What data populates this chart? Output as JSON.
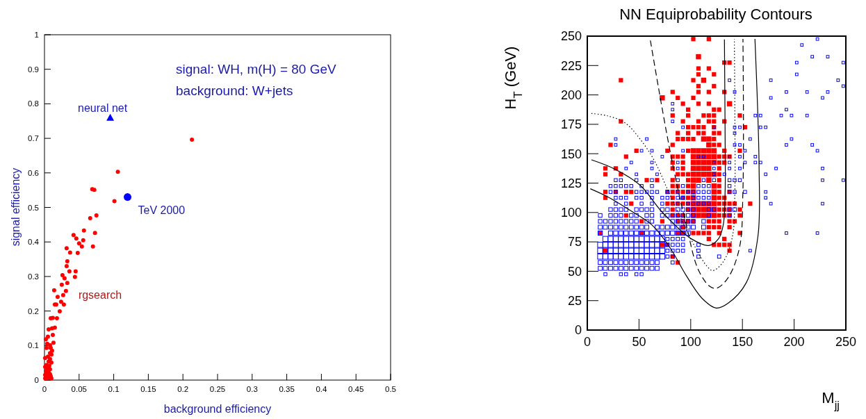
{
  "chart_data": [
    {
      "type": "scatter",
      "xlabel": "background efficiency",
      "ylabel": "signal efficiency",
      "xlim": [
        0,
        0.5
      ],
      "ylim": [
        0,
        1
      ],
      "xticks": [
        0,
        0.05,
        0.1,
        0.15,
        0.2,
        0.25,
        0.3,
        0.35,
        0.4,
        0.45,
        0.5
      ],
      "yticks": [
        0,
        0.1,
        0.2,
        0.3,
        0.4,
        0.5,
        0.6,
        0.7,
        0.8,
        0.9,
        1
      ],
      "annotations": [
        "signal: WH, m(H) = 80 GeV",
        "background: W+jets"
      ],
      "series": [
        {
          "name": "rgsearch",
          "color": "#ff0000",
          "marker": "circle",
          "x": [
            0.213,
            0.106,
            0.069,
            0.072,
            0.101,
            0.075,
            0.066,
            0.057,
            0.042,
            0.046,
            0.056,
            0.05,
            0.054,
            0.07,
            0.073,
            0.032,
            0.037,
            0.048,
            0.033,
            0.032,
            0.036,
            0.045,
            0.044,
            0.026,
            0.029,
            0.033,
            0.025,
            0.014,
            0.031,
            0.019,
            0.027,
            0.024,
            0.028,
            0.015,
            0.017,
            0.022,
            0.009,
            0.012,
            0.018,
            0.006,
            0.011,
            0.015,
            0.012,
            0.005,
            0.002,
            0.013,
            0.008,
            0.003,
            0.009,
            0.004,
            0.011,
            0.008,
            0.01,
            0.005,
            0.001,
            0.008,
            0.006,
            0.01,
            0.003,
            0.007,
            0.001,
            0.004,
            0.008,
            0.002,
            0.006,
            0.003,
            0.008,
            0.001,
            0.005,
            0.009,
            0.006,
            0.004,
            0.001,
            0.01
          ],
          "values": [
            0.696,
            0.603,
            0.553,
            0.551,
            0.518,
            0.477,
            0.469,
            0.433,
            0.42,
            0.41,
            0.405,
            0.396,
            0.387,
            0.387,
            0.426,
            0.382,
            0.369,
            0.368,
            0.344,
            0.33,
            0.315,
            0.315,
            0.299,
            0.304,
            0.295,
            0.281,
            0.276,
            0.26,
            0.258,
            0.241,
            0.246,
            0.227,
            0.219,
            0.219,
            0.219,
            0.199,
            0.179,
            0.18,
            0.179,
            0.147,
            0.15,
            0.152,
            0.131,
            0.126,
            0.118,
            0.108,
            0.101,
            0.093,
            0.093,
            0.105,
            0.085,
            0.078,
            0.074,
            0.068,
            0.064,
            0.061,
            0.054,
            0.051,
            0.044,
            0.041,
            0.038,
            0.033,
            0.031,
            0.026,
            0.022,
            0.018,
            0.017,
            0.015,
            0.013,
            0.011,
            0.008,
            0.006,
            0.005,
            0.005
          ]
        },
        {
          "name": "neural net",
          "color": "#0000ff",
          "marker": "triangle",
          "x": [
            0.095
          ],
          "values": [
            0.76
          ]
        },
        {
          "name": "TeV 2000",
          "color": "#0000ff",
          "marker": "circle",
          "x": [
            0.12
          ],
          "values": [
            0.53
          ]
        }
      ]
    },
    {
      "type": "bubble",
      "title": "NN Equiprobability Contours",
      "xlabel": "M$_{jj}$",
      "ylabel": "H$_{T}$ (GeV)",
      "xlim": [
        0,
        250
      ],
      "ylim": [
        0,
        250
      ],
      "xticks": [
        0,
        50,
        100,
        150,
        200,
        250
      ],
      "yticks": [
        0,
        25,
        50,
        75,
        100,
        125,
        150,
        175,
        200,
        225,
        250
      ],
      "series": [
        {
          "color": "#ff0000",
          "marker": "square",
          "x": [
            102.5,
            117.5,
            107.5,
            132.5,
            137.5,
            107.5,
            117.5,
            107.5,
            122.5,
            32.5,
            102.5,
            112.5,
            107.5,
            122.5,
            82.5,
            107.5,
            117.5,
            132.5,
            72.5,
            87.5,
            102.5,
            92.5,
            107.5,
            117.5,
            137.5,
            97.5,
            122.5,
            127.5,
            82.5,
            97.5,
            112.5,
            117.5,
            122.5,
            147.5,
            32.5,
            92.5,
            107.5,
            117.5,
            122.5,
            132.5,
            97.5,
            102.5,
            107.5,
            112.5,
            122.5,
            152.5,
            87.5,
            97.5,
            107.5,
            112.5,
            122.5,
            127.5,
            87.5,
            92.5,
            97.5,
            102.5,
            112.5,
            117.5,
            122.5,
            22.5,
            82.5,
            117.5,
            122.5,
            127.5,
            47.5,
            77.5,
            97.5,
            102.5,
            107.5,
            112.5,
            117.5,
            122.5,
            132.5,
            147.5,
            37.5,
            82.5,
            87.5,
            92.5,
            102.5,
            107.5,
            112.5,
            117.5,
            122.5,
            127.5,
            132.5,
            137.5,
            82.5,
            92.5,
            102.5,
            107.5,
            112.5,
            117.5,
            122.5,
            127.5,
            132.5,
            17.5,
            27.5,
            82.5,
            92.5,
            102.5,
            107.5,
            112.5,
            117.5,
            127.5,
            17.5,
            32.5,
            87.5,
            92.5,
            97.5,
            102.5,
            107.5,
            112.5,
            117.5,
            122.5,
            127.5,
            57.5,
            67.5,
            82.5,
            97.5,
            102.5,
            107.5,
            117.5,
            127.5,
            82.5,
            87.5,
            97.5,
            102.5,
            122.5,
            127.5,
            17.5,
            27.5,
            37.5,
            42.5,
            77.5,
            82.5,
            87.5,
            92.5,
            97.5,
            102.5,
            122.5,
            127.5,
            137.5,
            17.5,
            82.5,
            92.5,
            97.5,
            102.5,
            122.5,
            127.5,
            132.5,
            42.5,
            77.5,
            82.5,
            87.5,
            92.5,
            97.5,
            102.5,
            107.5,
            112.5,
            117.5,
            122.5,
            127.5,
            132.5,
            137.5,
            142.5,
            157.5,
            82.5,
            97.5,
            102.5,
            107.5,
            112.5,
            117.5,
            122.5,
            127.5,
            132.5,
            137.5,
            147.5,
            37.5,
            82.5,
            87.5,
            92.5,
            102.5,
            107.5,
            112.5,
            117.5,
            122.5,
            127.5,
            132.5,
            137.5,
            147.5,
            52.5,
            72.5,
            87.5,
            92.5,
            97.5,
            102.5,
            117.5,
            122.5,
            127.5,
            137.5,
            142.5,
            92.5,
            117.5,
            122.5,
            127.5,
            137.5,
            12.5,
            52.5,
            87.5,
            92.5,
            102.5,
            107.5,
            112.5,
            117.5,
            127.5,
            147.5,
            117.5,
            132.5,
            72.5,
            77.5,
            122.5,
            127.5,
            132.5,
            137.5,
            17.5,
            137.5,
            82.5,
            87.5
          ],
          "values": [
            247.5,
            247.5,
            232.5,
            227.5,
            227.5,
            222.5,
            222.5,
            217.5,
            217.5,
            212.5,
            212.5,
            212.5,
            207.5,
            207.5,
            202.5,
            202.5,
            202.5,
            202.5,
            197.5,
            197.5,
            197.5,
            192.5,
            192.5,
            192.5,
            192.5,
            187.5,
            187.5,
            187.5,
            182.5,
            182.5,
            182.5,
            182.5,
            182.5,
            182.5,
            177.5,
            177.5,
            177.5,
            177.5,
            177.5,
            177.5,
            172.5,
            172.5,
            172.5,
            172.5,
            172.5,
            172.5,
            167.5,
            167.5,
            167.5,
            167.5,
            167.5,
            167.5,
            162.5,
            162.5,
            162.5,
            162.5,
            162.5,
            162.5,
            162.5,
            157.5,
            157.5,
            157.5,
            157.5,
            157.5,
            152.5,
            152.5,
            152.5,
            152.5,
            152.5,
            152.5,
            152.5,
            152.5,
            152.5,
            152.5,
            147.5,
            147.5,
            147.5,
            147.5,
            147.5,
            147.5,
            147.5,
            147.5,
            147.5,
            147.5,
            147.5,
            147.5,
            142.5,
            142.5,
            142.5,
            142.5,
            142.5,
            142.5,
            142.5,
            142.5,
            142.5,
            137.5,
            137.5,
            137.5,
            137.5,
            137.5,
            137.5,
            137.5,
            137.5,
            137.5,
            132.5,
            132.5,
            132.5,
            132.5,
            132.5,
            132.5,
            132.5,
            132.5,
            132.5,
            132.5,
            132.5,
            127.5,
            127.5,
            127.5,
            127.5,
            127.5,
            127.5,
            127.5,
            127.5,
            122.5,
            122.5,
            122.5,
            122.5,
            122.5,
            122.5,
            117.5,
            117.5,
            117.5,
            117.5,
            117.5,
            117.5,
            117.5,
            117.5,
            117.5,
            117.5,
            117.5,
            117.5,
            117.5,
            112.5,
            112.5,
            112.5,
            112.5,
            112.5,
            112.5,
            112.5,
            112.5,
            107.5,
            107.5,
            107.5,
            107.5,
            107.5,
            107.5,
            107.5,
            107.5,
            107.5,
            107.5,
            107.5,
            107.5,
            107.5,
            107.5,
            107.5,
            107.5,
            102.5,
            102.5,
            102.5,
            102.5,
            102.5,
            102.5,
            102.5,
            102.5,
            102.5,
            102.5,
            102.5,
            97.5,
            97.5,
            97.5,
            97.5,
            97.5,
            97.5,
            97.5,
            97.5,
            97.5,
            97.5,
            97.5,
            97.5,
            97.5,
            92.5,
            92.5,
            92.5,
            92.5,
            92.5,
            92.5,
            92.5,
            92.5,
            92.5,
            92.5,
            92.5,
            87.5,
            87.5,
            87.5,
            87.5,
            87.5,
            82.5,
            82.5,
            82.5,
            82.5,
            82.5,
            82.5,
            82.5,
            82.5,
            82.5,
            82.5,
            77.5,
            77.5,
            72.5,
            72.5,
            72.5,
            72.5,
            72.5,
            72.5,
            67.5,
            67.5,
            62.5,
            57.5
          ],
          "sizes": [
            0.7,
            0.7,
            1,
            0.7,
            0.7,
            0.7,
            0.7,
            0.7,
            0.7,
            0.7,
            0.7,
            1,
            0.7,
            0.7,
            0.7,
            0.7,
            0.7,
            0.7,
            1,
            0.7,
            0.7,
            0.7,
            0.7,
            0.7,
            1,
            0.7,
            0.7,
            0.7,
            0.7,
            0.7,
            0.7,
            0.7,
            0.7,
            0.7,
            0.7,
            0.7,
            0.7,
            0.7,
            0.7,
            0.7,
            0.7,
            0.7,
            0.7,
            0.7,
            0.7,
            0.7,
            0.7,
            0.7,
            0.7,
            0.7,
            0.7,
            0.7,
            0.7,
            0.7,
            0.7,
            0.7,
            1,
            1,
            0.7,
            0.7,
            0.7,
            1,
            0.7,
            0.7,
            0.7,
            0.7,
            0.7,
            1,
            1,
            1,
            1,
            1,
            0.7,
            0.7,
            0.7,
            0.7,
            0.7,
            0.7,
            1,
            1,
            1,
            1,
            1,
            0.7,
            0.7,
            0.7,
            0.7,
            0.7,
            1,
            1,
            1,
            1,
            1,
            0.7,
            0.7,
            0.7,
            0.7,
            0.7,
            0.7,
            1,
            1,
            1,
            1,
            0.7,
            0.7,
            0.7,
            0.7,
            0.7,
            0.7,
            1,
            1,
            1,
            1,
            1,
            0.7,
            0.7,
            0.7,
            0.7,
            0.7,
            1,
            1,
            1,
            0.7,
            0.7,
            0.7,
            0.7,
            1,
            1,
            0.7,
            0.7,
            0.7,
            0.7,
            0.7,
            0.7,
            0.7,
            0.7,
            0.7,
            0.7,
            1,
            1,
            0.7,
            0.7,
            0.7,
            0.7,
            0.7,
            0.7,
            1,
            1,
            0.7,
            0.7,
            0.7,
            0.7,
            0.7,
            0.7,
            0.7,
            0.7,
            1,
            1,
            1,
            1,
            1,
            0.7,
            0.7,
            0.7,
            0.7,
            0.7,
            0.7,
            0.7,
            1,
            1,
            1,
            1,
            1,
            0.7,
            0.7,
            0.7,
            0.7,
            0.7,
            0.7,
            0.7,
            0.7,
            1,
            1,
            1,
            1,
            1,
            0.7,
            0.7,
            0.7,
            0.7,
            0.7,
            0.7,
            0.7,
            0.7,
            0.7,
            0.7,
            0.7,
            0.7,
            0.7,
            0.7,
            0.7,
            0.7,
            0.7,
            0.7,
            0.7,
            0.7,
            0.7,
            0.7,
            0.7,
            0.7,
            0.7,
            0.7,
            0.7,
            0.7,
            0.7,
            0.7,
            0.7,
            0.7,
            0.7,
            0.7,
            0.7,
            0.7,
            0.7,
            0.7,
            0.7,
            0.7,
            0.7,
            0.7
          ]
        },
        {
          "color": "#0000ff",
          "marker": "square",
          "x": [
            222.5,
            207.5,
            217.5,
            232.5,
            202.5,
            247.5,
            202.5,
            137.5,
            177.5,
            242.5,
            247.5,
            142.5,
            192.5,
            212.5,
            232.5,
            177.5,
            227.5,
            82.5,
            82.5,
            192.5,
            162.5,
            167.5,
            187.5,
            197.5,
            212.5,
            82.5,
            92.5,
            122.5,
            142.5,
            147.5,
            167.5,
            172.5,
            142.5,
            27.5,
            57.5,
            157.5,
            197.5,
            27.5,
            142.5,
            147.5,
            192.5,
            217.5,
            52.5,
            62.5,
            92.5,
            152.5,
            222.5,
            72.5,
            107.5,
            112.5,
            137.5,
            147.5,
            162.5,
            42.5,
            62.5,
            87.5,
            122.5,
            137.5,
            152.5,
            162.5,
            167.5,
            37.5,
            62.5,
            87.5,
            122.5,
            137.5,
            147.5,
            182.5,
            227.5,
            47.5,
            67.5,
            122.5,
            132.5,
            172.5,
            27.5,
            32.5,
            47.5,
            62.5,
            87.5,
            112.5,
            122.5,
            137.5,
            142.5,
            147.5,
            227.5,
            247.5,
            22.5,
            27.5,
            32.5,
            37.5,
            42.5,
            52.5,
            62.5,
            92.5,
            107.5,
            112.5,
            117.5,
            137.5,
            22.5,
            27.5,
            47.5,
            52.5,
            57.5,
            62.5,
            67.5,
            77.5,
            87.5,
            97.5,
            102.5,
            107.5,
            112.5,
            117.5,
            137.5,
            142.5,
            152.5,
            172.5,
            27.5,
            32.5,
            37.5,
            47.5,
            52.5,
            62.5,
            72.5,
            77.5,
            87.5,
            92.5,
            102.5,
            107.5,
            112.5,
            117.5,
            172.5,
            27.5,
            37.5,
            52.5,
            62.5,
            72.5,
            87.5,
            97.5,
            102.5,
            107.5,
            112.5,
            117.5,
            177.5,
            227.5,
            22.5,
            27.5,
            32.5,
            37.5,
            47.5,
            52.5,
            57.5,
            62.5,
            72.5,
            77.5,
            87.5,
            92.5,
            97.5,
            102.5,
            117.5,
            122.5,
            137.5,
            142.5,
            12.5,
            22.5,
            27.5,
            32.5,
            42.5,
            47.5,
            57.5,
            62.5,
            72.5,
            77.5,
            82.5,
            87.5,
            92.5,
            97.5,
            102.5,
            117.5,
            137.5,
            12.5,
            17.5,
            22.5,
            27.5,
            32.5,
            37.5,
            42.5,
            47.5,
            57.5,
            62.5,
            82.5,
            87.5,
            92.5,
            97.5,
            102.5,
            112.5,
            12.5,
            17.5,
            22.5,
            27.5,
            32.5,
            37.5,
            42.5,
            47.5,
            52.5,
            57.5,
            67.5,
            72.5,
            77.5,
            82.5,
            87.5,
            92.5,
            97.5,
            102.5,
            112.5,
            12.5,
            22.5,
            27.5,
            32.5,
            37.5,
            42.5,
            47.5,
            52.5,
            57.5,
            62.5,
            67.5,
            72.5,
            77.5,
            82.5,
            87.5,
            92.5,
            97.5,
            192.5,
            222.5,
            17.5,
            22.5,
            27.5,
            32.5,
            37.5,
            42.5,
            47.5,
            52.5,
            57.5,
            62.5,
            67.5,
            72.5,
            77.5,
            82.5,
            87.5,
            92.5,
            12.5,
            17.5,
            22.5,
            27.5,
            32.5,
            37.5,
            42.5,
            47.5,
            52.5,
            57.5,
            62.5,
            67.5,
            72.5,
            77.5,
            82.5,
            87.5,
            92.5,
            107.5,
            12.5,
            17.5,
            22.5,
            27.5,
            32.5,
            37.5,
            42.5,
            47.5,
            52.5,
            57.5,
            62.5,
            67.5,
            72.5,
            77.5,
            82.5,
            87.5,
            92.5,
            107.5,
            157.5,
            12.5,
            17.5,
            22.5,
            27.5,
            32.5,
            37.5,
            42.5,
            47.5,
            52.5,
            57.5,
            62.5,
            67.5,
            72.5,
            77.5,
            82.5,
            107.5,
            127.5,
            12.5,
            17.5,
            22.5,
            27.5,
            32.5,
            37.5,
            42.5,
            47.5,
            52.5,
            57.5,
            62.5,
            67.5,
            82.5,
            12.5,
            17.5,
            22.5,
            27.5,
            32.5,
            37.5,
            42.5,
            47.5,
            52.5,
            57.5,
            62.5,
            67.5,
            17.5,
            32.5,
            37.5,
            47.5,
            52.5
          ],
          "values": [
            247.5,
            242.5,
            232.5,
            232.5,
            227.5,
            227.5,
            217.5,
            212.5,
            212.5,
            212.5,
            207.5,
            202.5,
            202.5,
            202.5,
            202.5,
            197.5,
            197.5,
            192.5,
            187.5,
            187.5,
            182.5,
            182.5,
            182.5,
            182.5,
            182.5,
            177.5,
            172.5,
            172.5,
            172.5,
            172.5,
            172.5,
            172.5,
            167.5,
            162.5,
            162.5,
            162.5,
            162.5,
            157.5,
            157.5,
            157.5,
            157.5,
            157.5,
            152.5,
            152.5,
            152.5,
            152.5,
            152.5,
            147.5,
            147.5,
            147.5,
            147.5,
            147.5,
            147.5,
            142.5,
            142.5,
            142.5,
            142.5,
            142.5,
            142.5,
            142.5,
            142.5,
            137.5,
            137.5,
            137.5,
            137.5,
            137.5,
            137.5,
            137.5,
            137.5,
            132.5,
            132.5,
            132.5,
            132.5,
            132.5,
            127.5,
            127.5,
            127.5,
            127.5,
            127.5,
            127.5,
            127.5,
            127.5,
            127.5,
            127.5,
            127.5,
            127.5,
            122.5,
            122.5,
            122.5,
            122.5,
            122.5,
            122.5,
            122.5,
            122.5,
            122.5,
            122.5,
            122.5,
            122.5,
            117.5,
            117.5,
            117.5,
            117.5,
            117.5,
            117.5,
            117.5,
            117.5,
            117.5,
            117.5,
            117.5,
            117.5,
            117.5,
            117.5,
            117.5,
            117.5,
            117.5,
            117.5,
            112.5,
            112.5,
            112.5,
            112.5,
            112.5,
            112.5,
            112.5,
            112.5,
            112.5,
            112.5,
            112.5,
            112.5,
            112.5,
            112.5,
            112.5,
            107.5,
            107.5,
            107.5,
            107.5,
            107.5,
            107.5,
            107.5,
            107.5,
            107.5,
            107.5,
            107.5,
            107.5,
            107.5,
            102.5,
            102.5,
            102.5,
            102.5,
            102.5,
            102.5,
            102.5,
            102.5,
            102.5,
            102.5,
            102.5,
            102.5,
            102.5,
            102.5,
            102.5,
            102.5,
            102.5,
            102.5,
            97.5,
            97.5,
            97.5,
            97.5,
            97.5,
            97.5,
            97.5,
            97.5,
            97.5,
            97.5,
            97.5,
            97.5,
            97.5,
            97.5,
            97.5,
            97.5,
            97.5,
            92.5,
            92.5,
            92.5,
            92.5,
            92.5,
            92.5,
            92.5,
            92.5,
            92.5,
            92.5,
            92.5,
            92.5,
            92.5,
            92.5,
            92.5,
            92.5,
            87.5,
            87.5,
            87.5,
            87.5,
            87.5,
            87.5,
            87.5,
            87.5,
            87.5,
            87.5,
            87.5,
            87.5,
            87.5,
            87.5,
            87.5,
            87.5,
            87.5,
            87.5,
            87.5,
            82.5,
            82.5,
            82.5,
            82.5,
            82.5,
            82.5,
            82.5,
            82.5,
            82.5,
            82.5,
            82.5,
            82.5,
            82.5,
            82.5,
            82.5,
            82.5,
            82.5,
            82.5,
            82.5,
            77.5,
            77.5,
            77.5,
            77.5,
            77.5,
            77.5,
            77.5,
            77.5,
            77.5,
            77.5,
            77.5,
            77.5,
            77.5,
            77.5,
            77.5,
            77.5,
            72.5,
            72.5,
            72.5,
            72.5,
            72.5,
            72.5,
            72.5,
            72.5,
            72.5,
            72.5,
            72.5,
            72.5,
            72.5,
            72.5,
            72.5,
            72.5,
            72.5,
            72.5,
            67.5,
            67.5,
            67.5,
            67.5,
            67.5,
            67.5,
            67.5,
            67.5,
            67.5,
            67.5,
            67.5,
            67.5,
            67.5,
            67.5,
            67.5,
            67.5,
            67.5,
            67.5,
            67.5,
            62.5,
            62.5,
            62.5,
            62.5,
            62.5,
            62.5,
            62.5,
            62.5,
            62.5,
            62.5,
            62.5,
            62.5,
            62.5,
            62.5,
            62.5,
            62.5,
            62.5,
            57.5,
            57.5,
            57.5,
            57.5,
            57.5,
            57.5,
            57.5,
            57.5,
            57.5,
            57.5,
            57.5,
            57.5,
            57.5,
            52.5,
            52.5,
            52.5,
            52.5,
            52.5,
            52.5,
            52.5,
            52.5,
            52.5,
            52.5,
            52.5,
            52.5,
            47.5,
            47.5,
            47.5,
            47.5,
            47.5
          ],
          "sizes": [
            0.25,
            0.25,
            0.25,
            0.25,
            0.25,
            0.25,
            0.25,
            0.25,
            0.25,
            0.25,
            0.25,
            0.25,
            0.25,
            0.25,
            0.25,
            0.25,
            0.25,
            0.25,
            0.25,
            0.25,
            0.25,
            0.25,
            0.25,
            0.25,
            0.25,
            0.25,
            0.25,
            0.25,
            0.25,
            0.25,
            0.25,
            0.25,
            0.25,
            0.25,
            0.25,
            0.25,
            0.25,
            0.25,
            0.25,
            0.25,
            0.25,
            0.25,
            0.25,
            0.25,
            0.25,
            0.25,
            0.25,
            0.25,
            0.25,
            0.25,
            0.25,
            0.25,
            0.25,
            0.25,
            0.25,
            0.25,
            0.25,
            0.25,
            0.25,
            0.25,
            0.25,
            0.25,
            0.25,
            0.25,
            0.25,
            0.25,
            0.25,
            0.25,
            0.25,
            0.25,
            0.25,
            0.25,
            0.25,
            0.25,
            0.35,
            0.35,
            0.35,
            0.35,
            0.35,
            0.35,
            0.35,
            0.35,
            0.35,
            0.35,
            0.25,
            0.25,
            0.35,
            0.35,
            0.35,
            0.35,
            0.35,
            0.35,
            0.35,
            0.35,
            0.35,
            0.35,
            0.35,
            0.35,
            0.35,
            0.35,
            0.35,
            0.35,
            0.35,
            0.35,
            0.35,
            0.35,
            0.35,
            0.35,
            0.35,
            0.35,
            0.35,
            0.35,
            0.35,
            0.35,
            0.35,
            0.25,
            0.35,
            0.35,
            0.35,
            0.35,
            0.35,
            0.35,
            0.35,
            0.35,
            0.35,
            0.35,
            0.35,
            0.35,
            0.35,
            0.35,
            0.25,
            0.35,
            0.35,
            0.35,
            0.35,
            0.35,
            0.35,
            0.35,
            0.35,
            0.35,
            0.35,
            0.35,
            0.25,
            0.25,
            0.5,
            0.5,
            0.5,
            0.5,
            0.5,
            0.5,
            0.5,
            0.5,
            0.5,
            0.5,
            0.5,
            0.5,
            0.5,
            0.5,
            0.5,
            0.5,
            0.5,
            0.5,
            0.5,
            0.5,
            0.5,
            0.5,
            0.5,
            0.5,
            0.5,
            0.5,
            0.5,
            0.5,
            0.5,
            0.5,
            0.5,
            0.5,
            0.5,
            0.5,
            0.5,
            0.5,
            0.5,
            0.5,
            0.5,
            0.5,
            0.5,
            0.5,
            0.5,
            0.5,
            0.5,
            0.5,
            0.5,
            0.5,
            0.5,
            0.5,
            0.5,
            0.6,
            0.6,
            0.6,
            0.6,
            0.6,
            0.6,
            0.6,
            0.6,
            0.6,
            0.6,
            0.6,
            0.6,
            0.6,
            0.6,
            0.6,
            0.6,
            0.6,
            0.6,
            0.6,
            0.7,
            0.7,
            0.7,
            0.7,
            0.7,
            0.7,
            0.7,
            0.7,
            0.7,
            0.7,
            0.7,
            0.7,
            0.7,
            0.7,
            0.7,
            0.7,
            0.7,
            0.25,
            0.25,
            1,
            1,
            1,
            1,
            1,
            1,
            1,
            1,
            1,
            1,
            1,
            1,
            0.4,
            0.4,
            0.4,
            0.4,
            1,
            1,
            1,
            1,
            1,
            1,
            1,
            1,
            1,
            1,
            1,
            1,
            1,
            0.4,
            0.4,
            0.4,
            0.4,
            0.4,
            1,
            1,
            1,
            1,
            1,
            1,
            1,
            1,
            1,
            1,
            1,
            1,
            1,
            0.4,
            0.4,
            0.4,
            0.4,
            0.4,
            0.25,
            1,
            1,
            1,
            1,
            1,
            1,
            1,
            1,
            1,
            1,
            1,
            1,
            1,
            0.4,
            0.4,
            0.4,
            0.4,
            0.6,
            0.6,
            0.6,
            0.6,
            0.6,
            0.6,
            0.6,
            0.6,
            0.6,
            0.6,
            0.6,
            0.6,
            0.4,
            0.6,
            0.6,
            0.6,
            0.6,
            0.6,
            0.6,
            0.6,
            0.6,
            0.6,
            0.6,
            0.6,
            0.6,
            0.35,
            0.35,
            0.35,
            0.35,
            0.35
          ]
        },
        {
          "type": "line",
          "color": "#000000",
          "line_style": "solid",
          "x": [
            4.0,
            26.4,
            51.0,
            71.1,
            86.8,
            100.2,
            117.4,
            127.0,
            131.5,
            133.3,
            133.3,
            132.6
          ],
          "values": [
            144.8,
            137.0,
            123.2,
            101.5,
            87.7,
            77.8,
            71.9,
            77.8,
            89.6,
            119.2,
            158.6,
            247.2
          ]
        },
        {
          "type": "line",
          "color": "#000000",
          "line_style": "dotted",
          "x": [
            4.0,
            19.7,
            36.4,
            51.0,
            64.4,
            77.8,
            91.2,
            104.7,
            115.8,
            121.4,
            131.5,
            140.4,
            142.7,
            142.7,
            142.2
          ],
          "values": [
            184.2,
            182.2,
            176.3,
            162.5,
            144.8,
            119.2,
            93.6,
            69.9,
            54.2,
            50.6,
            58.1,
            79.8,
            119.2,
            178.3,
            247.6
          ]
        },
        {
          "type": "line",
          "color": "#000000",
          "line_style": "dashed",
          "x": [
            61.0,
            68.9,
            77.8,
            86.8,
            95.7,
            106.9,
            118.1,
            124.8,
            136.0,
            147.1,
            150.5,
            150.5
          ],
          "values": [
            246.3,
            205.9,
            162.5,
            123.1,
            89.6,
            52.2,
            37.4,
            35.5,
            44.3,
            69.9,
            119.2,
            247.6
          ]
        },
        {
          "type": "line",
          "color": "#000000",
          "line_style": "solid",
          "x": [
            2.9,
            19.7,
            42.0,
            62.2,
            80.1,
            95.7,
            111.4,
            124.8,
            136.0,
            153.8,
            165.0,
            166.1,
            162.1
          ],
          "values": [
            120.2,
            113.3,
            101.5,
            89.6,
            69.9,
            46.3,
            26.6,
            18.7,
            22.7,
            40.4,
            79.8,
            138.9,
            247.6
          ]
        }
      ]
    }
  ]
}
